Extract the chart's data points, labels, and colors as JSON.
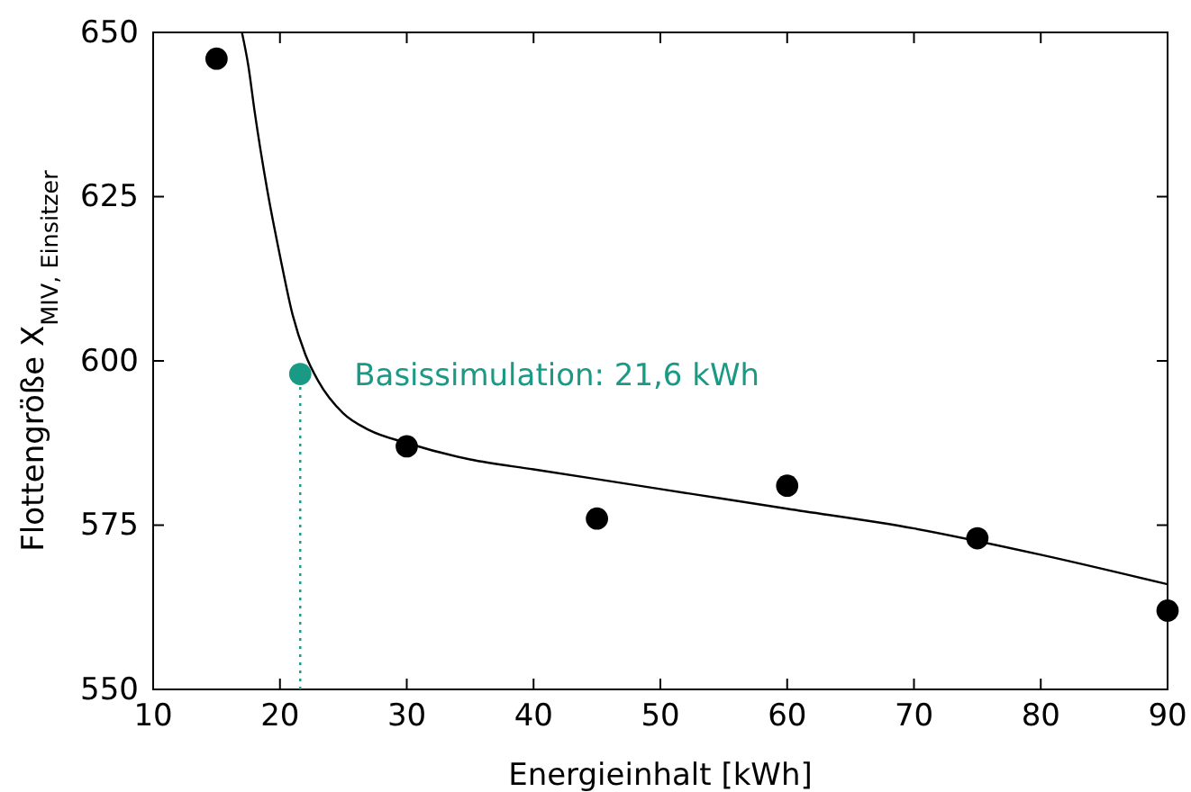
{
  "chart_data": {
    "type": "scatter",
    "xlabel": "Energieinhalt [kWh]",
    "ylabel": "Flottengröße X$_{MIV, Einsitzer}$",
    "xlim": [
      10,
      90
    ],
    "xticks": [
      10,
      20,
      30,
      40,
      50,
      60,
      70,
      80,
      90
    ],
    "ylim": [
      550,
      650
    ],
    "yticks": [
      550,
      575,
      600,
      625,
      650
    ],
    "series": [
      {
        "type": "line",
        "color": "#000000",
        "x": [
          17,
          17.5,
          18,
          19,
          20,
          21,
          22,
          23,
          25,
          27,
          30,
          35,
          40,
          50,
          60,
          70,
          80,
          90
        ],
        "values": [
          650,
          645,
          638,
          626,
          616,
          607,
          601,
          597,
          592,
          589.5,
          587.5,
          585,
          583.5,
          580.5,
          577.5,
          574.5,
          570.5,
          566
        ]
      },
      {
        "color": "#000000",
        "marker": "circle",
        "x": [
          15,
          30,
          45,
          60,
          75,
          90
        ],
        "values": [
          646,
          587,
          576,
          581,
          573,
          562
        ]
      },
      {
        "type": "line",
        "color": "#1a9985",
        "line_style": "dotted",
        "x": [
          21.6,
          21.6
        ],
        "values": [
          550,
          598
        ]
      },
      {
        "color": "#1a9985",
        "marker": "circle",
        "x": [
          21.6
        ],
        "values": [
          598
        ]
      }
    ],
    "annotations": [
      {
        "text": "Basissimulation: 21,6 kWh",
        "x": 21.6,
        "y": 598
      }
    ]
  }
}
